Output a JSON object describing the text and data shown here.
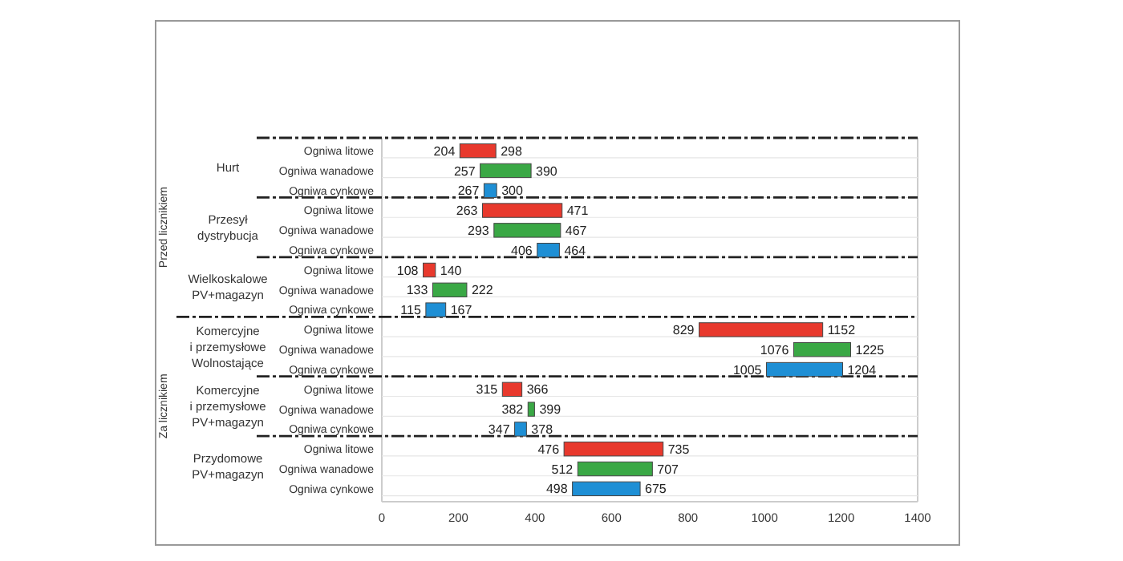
{
  "chart_data": {
    "type": "bar",
    "orientation": "horizontal",
    "categories": [
      "Ogniwa litowe",
      "Ogniwa wanadowe",
      "Ogniwa cynkowe",
      "Ogniwa litowe",
      "Ogniwa wanadowe",
      "Ogniwa cynkowe",
      "Ogniwa litowe",
      "Ogniwa wanadowe",
      "Ogniwa cynkowe",
      "Ogniwa litowe",
      "Ogniwa wanadowe",
      "Ogniwa cynkowe",
      "Ogniwa litowe",
      "Ogniwa wanadowe",
      "Ogniwa cynkowe",
      "Ogniwa litowe",
      "Ogniwa wanadowe",
      "Ogniwa cynkowe"
    ],
    "base": [
      204,
      257,
      267,
      263,
      293,
      406,
      108,
      133,
      115,
      829,
      1076,
      1005,
      315,
      382,
      347,
      476,
      512,
      498
    ],
    "values": [
      94,
      133,
      33,
      208,
      174,
      58,
      32,
      89,
      52,
      323,
      149,
      199,
      51,
      17,
      31,
      259,
      195,
      177
    ],
    "value_labels": [
      "298",
      "390",
      "300",
      "471",
      "467",
      "464",
      "140",
      "222",
      "167",
      "1152",
      "1225",
      "1204",
      "366",
      "399",
      "378",
      "735",
      "707",
      "675"
    ],
    "colors": [
      "#e8392d",
      "#3aa845",
      "#1e8fd5",
      "#e8392d",
      "#3aa845",
      "#1e8fd5",
      "#e8392d",
      "#3aa845",
      "#1e8fd5",
      "#e8392d",
      "#3aa845",
      "#1e8fd5",
      "#e8392d",
      "#3aa845",
      "#1e8fd5",
      "#e8392d",
      "#3aa845",
      "#1e8fd5"
    ],
    "xlim": [
      0,
      1400
    ],
    "xticks": [
      0,
      200,
      400,
      600,
      800,
      1000,
      1200,
      1400
    ],
    "grid": false,
    "annotations": [
      "Hurt",
      "Przesył\ndystrybucja",
      "Wielkoskalowe\nPV+magazyn",
      "Komercyjne\ni przemysłowe\nWolnostające",
      "Komercyjne\ni przemysłowe\nPV+magazyn",
      "Przydomowe\nPV+magazyn",
      "Przed licznikiem",
      "Za licznikiem",
      "204",
      "257",
      "267",
      "263",
      "293",
      "406",
      "108",
      "133",
      "115",
      "829",
      "1076",
      "1005",
      "315",
      "382",
      "347",
      "476",
      "512",
      "498"
    ]
  }
}
